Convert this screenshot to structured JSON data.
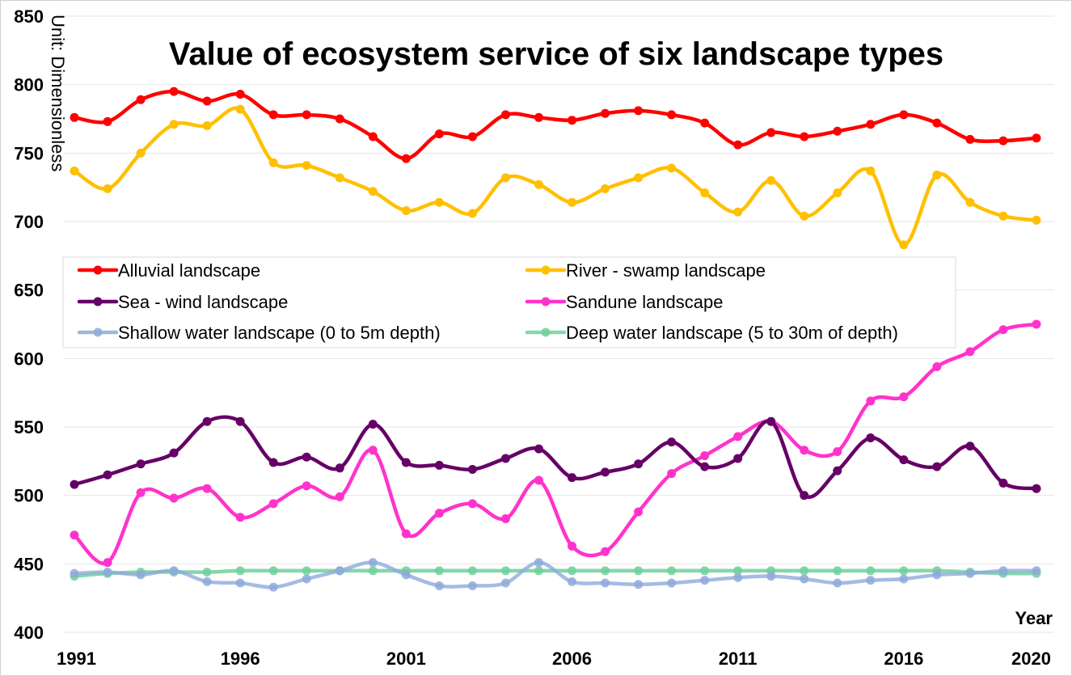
{
  "chart_data": {
    "type": "line",
    "title": "Value of ecosystem service of six landscape types",
    "ylabel": "Unit: Dimensionless",
    "xlabel": "Year",
    "ylim": [
      400,
      850
    ],
    "y_ticks": [
      400,
      450,
      500,
      550,
      600,
      650,
      700,
      750,
      800,
      850
    ],
    "x_tick_labels": [
      "1991",
      "1996",
      "2001",
      "2006",
      "2011",
      "2016",
      "2020"
    ],
    "x": [
      1991,
      1992,
      1993,
      1994,
      1995,
      1996,
      1997,
      1998,
      1999,
      2000,
      2001,
      2002,
      2003,
      2004,
      2005,
      2006,
      2007,
      2008,
      2009,
      2010,
      2011,
      2012,
      2013,
      2014,
      2015,
      2016,
      2017,
      2018,
      2019,
      2020
    ],
    "grid": "horizontal",
    "legend_placement": "upper-middle, two columns",
    "smooth": true,
    "series": [
      {
        "name": "Alluvial landscape",
        "color": "#ff0000",
        "values": [
          776,
          773,
          789,
          795,
          788,
          793,
          778,
          778,
          775,
          762,
          746,
          764,
          762,
          778,
          776,
          774,
          779,
          781,
          778,
          772,
          756,
          765,
          762,
          766,
          771,
          778,
          772,
          760,
          759,
          761
        ]
      },
      {
        "name": "River - swamp landscape",
        "color": "#ffc000",
        "values": [
          737,
          724,
          750,
          771,
          770,
          782,
          743,
          741,
          732,
          722,
          708,
          714,
          706,
          732,
          727,
          714,
          724,
          732,
          739,
          721,
          707,
          730,
          704,
          721,
          737,
          683,
          734,
          714,
          704,
          701
        ]
      },
      {
        "name": "Sea - wind landscape",
        "color": "#660066",
        "values": [
          508,
          515,
          523,
          531,
          554,
          554,
          524,
          528,
          520,
          552,
          524,
          522,
          519,
          527,
          534,
          513,
          517,
          523,
          539,
          521,
          527,
          554,
          500,
          518,
          542,
          526,
          521,
          536,
          509,
          505
        ]
      },
      {
        "name": "Sandune landscape",
        "color": "#ff33cc",
        "values": [
          471,
          451,
          502,
          498,
          505,
          484,
          494,
          507,
          499,
          533,
          472,
          487,
          494,
          483,
          511,
          463,
          459,
          488,
          516,
          529,
          543,
          554,
          533,
          532,
          569,
          572,
          594,
          605,
          621,
          625
        ]
      },
      {
        "name": "Shallow water landscape (0 to 5m depth)",
        "color": "#8eaadb",
        "values": [
          443,
          444,
          442,
          445,
          437,
          436,
          433,
          439,
          445,
          451,
          442,
          434,
          434,
          436,
          451,
          437,
          436,
          435,
          436,
          438,
          440,
          441,
          439,
          436,
          438,
          439,
          442,
          443,
          445,
          445
        ]
      },
      {
        "name": "Deep water landscape (5 to 30m of depth)",
        "color": "#70d09a",
        "values": [
          441,
          443,
          444,
          444,
          444,
          445,
          445,
          445,
          445,
          445,
          445,
          445,
          445,
          445,
          445,
          445,
          445,
          445,
          445,
          445,
          445,
          445,
          445,
          445,
          445,
          445,
          445,
          444,
          443,
          443
        ]
      }
    ]
  }
}
